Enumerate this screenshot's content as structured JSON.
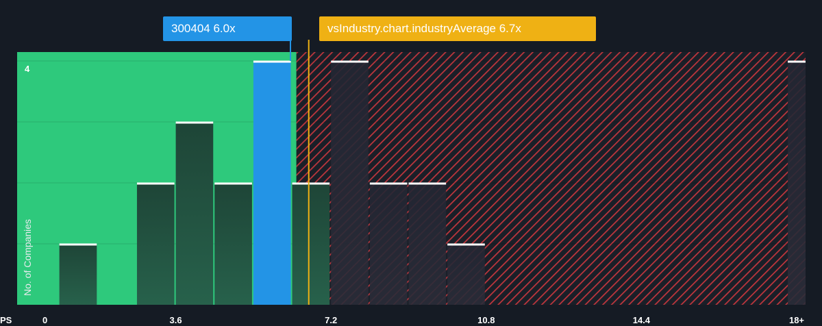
{
  "chart_data": {
    "type": "bar",
    "xlabel": "PS",
    "ylabel": "No. of Companies",
    "x_ticks": [
      "0",
      "3.6",
      "7.2",
      "10.8",
      "14.4",
      "18+"
    ],
    "y_tick_label": "4",
    "xlim": [
      0,
      18.5
    ],
    "ylim": [
      0,
      4
    ],
    "bin_width": 0.9,
    "bars": [
      {
        "x_start": 0.9,
        "value": 1
      },
      {
        "x_start": 2.7,
        "value": 2
      },
      {
        "x_start": 3.6,
        "value": 3
      },
      {
        "x_start": 4.5,
        "value": 2
      },
      {
        "x_start": 5.4,
        "value": 4,
        "highlight": true
      },
      {
        "x_start": 6.3,
        "value": 2
      },
      {
        "x_start": 7.2,
        "value": 4
      },
      {
        "x_start": 8.1,
        "value": 2
      },
      {
        "x_start": 9.0,
        "value": 2
      },
      {
        "x_start": 9.9,
        "value": 1
      },
      {
        "x_start": 18.0,
        "value": 4
      }
    ],
    "company": {
      "label": "300404 6.0x",
      "value": 6.0
    },
    "industry_average": {
      "label": "vsIndustry.chart.industryAverage 6.7x",
      "value": 6.7
    },
    "colors": {
      "background": "#151b24",
      "below_region": "#2ec97c",
      "bar": "#1f4a3c",
      "highlight_bar": "#2394e6",
      "above_hatch": "#c0363d",
      "industry_line": "#efb114",
      "bar_top": "#ffffff"
    }
  }
}
